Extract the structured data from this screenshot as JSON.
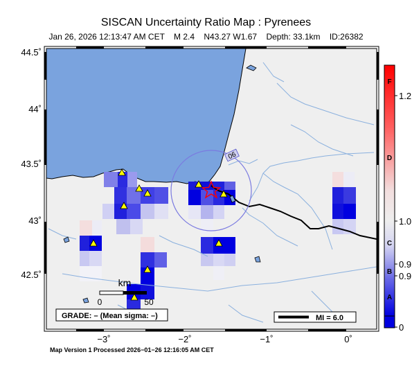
{
  "header": {
    "title": "SISCAN Uncertainty Ratio Map : Pyrenees",
    "date": "Jan 26, 2026 12:13:47 AM CET",
    "magnitude": "M 2.4",
    "location": "N43.27 W1.67",
    "depth": "Depth: 33.1km",
    "event_id": "ID:26382"
  },
  "map": {
    "lat_ticks": [
      "44.5˚",
      "44˚",
      "43.5˚",
      "43˚",
      "42.5˚"
    ],
    "lon_ticks": [
      "−3˚",
      "−2˚",
      "−1˚",
      "0˚"
    ],
    "region_label": "06",
    "scalebar": {
      "unit": "km",
      "start": "0",
      "end": "50"
    },
    "grade_box": "GRADE: – (Mean sigma: –)",
    "mi_legend": "MI = 6.0",
    "colors": {
      "sea": "#7aa3de",
      "land": "#efefef",
      "border": "#000000",
      "rivers": "#8ab0de",
      "cell_blue": "#0000e0",
      "station": "#ffff00",
      "epicenter": "#ff0000"
    }
  },
  "colorbar": {
    "grades": [
      "F",
      "D",
      "C",
      "B",
      "A"
    ],
    "values": [
      "1.2",
      "1.0",
      "0.9",
      "0.9",
      "0"
    ]
  },
  "footer": {
    "text": "Map Version 1 Processed 2026−01−26 12:16:05 AM CET"
  }
}
